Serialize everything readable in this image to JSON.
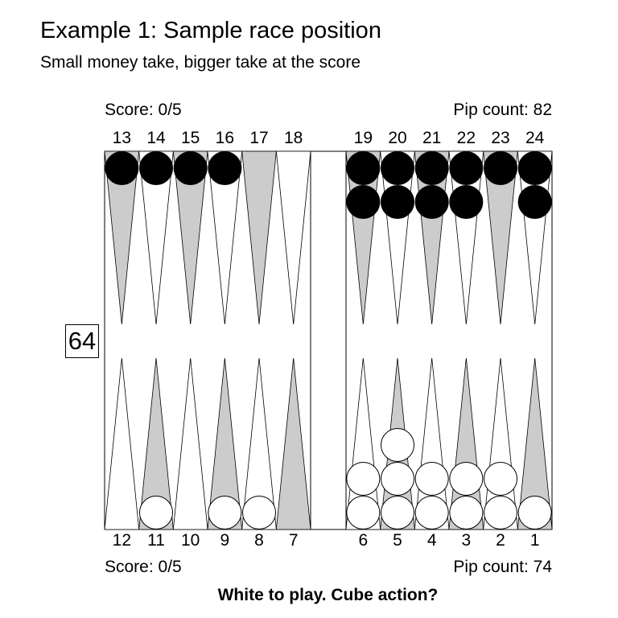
{
  "header": {
    "title": "Example 1: Sample race position",
    "subtitle": "Small money take, bigger take at the score"
  },
  "top_info": {
    "score": "Score: 0/5",
    "pip_count": "Pip count: 82"
  },
  "bottom_info": {
    "score": "Score: 0/5",
    "pip_count": "Pip count: 74"
  },
  "cube": {
    "value": "64"
  },
  "question": "White to play. Cube action?",
  "board": {
    "top_point_labels": [
      "13",
      "14",
      "15",
      "16",
      "17",
      "18",
      "19",
      "20",
      "21",
      "22",
      "23",
      "24"
    ],
    "bottom_point_labels": [
      "12",
      "11",
      "10",
      "9",
      "8",
      "7",
      "6",
      "5",
      "4",
      "3",
      "2",
      "1"
    ],
    "colors": {
      "light_point": "#ffffff",
      "dark_point": "#cccccc",
      "black_checker": "#000000",
      "white_checker": "#ffffff"
    },
    "checkers": {
      "black": {
        "13": 1,
        "14": 1,
        "15": 1,
        "16": 1,
        "19": 2,
        "20": 2,
        "21": 2,
        "22": 2,
        "23": 1,
        "24": 2
      },
      "white": {
        "11": 1,
        "9": 1,
        "8": 1,
        "6": 2,
        "5": 3,
        "4": 2,
        "3": 2,
        "2": 2,
        "1": 1
      }
    }
  }
}
